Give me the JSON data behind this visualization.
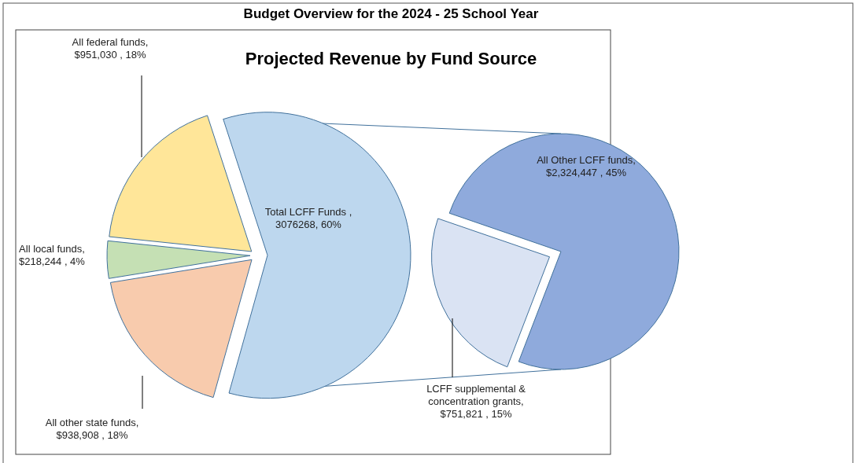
{
  "chart_data": [
    {
      "type": "pie",
      "title": "Budget Overview for the 2024 - 25 School Year",
      "subtitle": "Projected Revenue by Fund Source",
      "categories": [
        "Total LCFF Funds",
        "All other state funds",
        "All local funds",
        "All federal funds"
      ],
      "values": [
        3076268,
        938908,
        218244,
        951030
      ],
      "colors": [
        "#bdd7ee",
        "#f8cbad",
        "#c5e0b4",
        "#ffe699"
      ],
      "value_labels": [
        " , 3076268, 60%",
        ", $938,908 , 18%",
        ", $218,244 , 4%",
        ", $951,030 , 18%"
      ]
    },
    {
      "type": "pie",
      "categories": [
        "LCFF supplemental & concentration grants",
        "All Other LCFF funds"
      ],
      "values": [
        751821,
        2324447
      ],
      "colors": [
        "#dae3f3",
        "#8faadc"
      ],
      "value_labels": [
        ",  $751,821 , 15%",
        ", $2,324,447 , 45%"
      ]
    }
  ]
}
